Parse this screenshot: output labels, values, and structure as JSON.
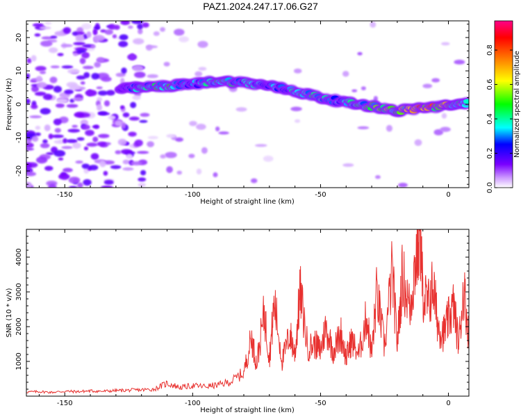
{
  "title": "PAZ1.2024.247.17.06.G27",
  "chart_data": [
    {
      "type": "heatmap",
      "title": "PAZ1.2024.247.17.06.G27",
      "xlabel": "Height of straight line (km)",
      "ylabel": "Frequency (Hz)",
      "xlim": [
        -165,
        8
      ],
      "ylim": [
        -25,
        25
      ],
      "xticks": [
        -150,
        -100,
        -50,
        0
      ],
      "yticks": [
        -20,
        -10,
        0,
        10,
        20
      ],
      "colorbar": {
        "label": "Normalized spectral amplitude",
        "range": [
          0,
          0.97
        ],
        "ticks": [
          0.0,
          0.2,
          0.4,
          0.6,
          0.8
        ],
        "tick_labels": [
          "0.0",
          "0.2",
          "0.4",
          "0.6",
          "0.8"
        ],
        "colors": [
          "#ffffff",
          "#cc99ff",
          "#7a00ff",
          "#0000ff",
          "#00ffff",
          "#00ff00",
          "#ffff00",
          "#ff8800",
          "#ff0000",
          "#ff0088"
        ]
      },
      "signal_ridge": {
        "x": [
          -128,
          -120,
          -110,
          -100,
          -90,
          -80,
          -70,
          -60,
          -50,
          -40,
          -30,
          -20,
          -10,
          0,
          8
        ],
        "frequency": [
          4.5,
          5.0,
          5.5,
          6.0,
          7.0,
          6.5,
          5.5,
          4.0,
          2.0,
          0.5,
          -0.5,
          -2.0,
          -1.0,
          -0.5,
          0.5
        ],
        "peak_amplitude": [
          0.2,
          0.4,
          0.5,
          0.3,
          0.45,
          0.4,
          0.35,
          0.4,
          0.45,
          0.35,
          0.5,
          0.55,
          0.85,
          0.6,
          0.5
        ]
      }
    },
    {
      "type": "line",
      "xlabel": "Height of straight line (km)",
      "ylabel": "SNR (10 * v/v)",
      "xlim": [
        -165,
        8
      ],
      "ylim": [
        0,
        4800
      ],
      "xticks": [
        -150,
        -100,
        -50,
        0
      ],
      "yticks": [
        1000,
        2000,
        3000,
        4000
      ],
      "color": "#e8312f",
      "series": [
        {
          "x": [
            -165,
            -160,
            -155,
            -150,
            -145,
            -140,
            -135,
            -130,
            -125,
            -120,
            -115,
            -110,
            -105,
            -100,
            -95,
            -90,
            -85,
            -80,
            -77,
            -75,
            -72,
            -70,
            -68,
            -65,
            -62,
            -60,
            -58,
            -55,
            -52,
            -50,
            -48,
            -45,
            -42,
            -40,
            -38,
            -35,
            -32,
            -30,
            -28,
            -25,
            -22,
            -20,
            -18,
            -15,
            -13,
            -11,
            -10,
            -8,
            -6,
            -4,
            -2,
            0,
            2,
            4,
            6,
            8
          ],
          "values": [
            120,
            130,
            110,
            140,
            130,
            150,
            140,
            160,
            170,
            180,
            200,
            370,
            250,
            300,
            280,
            320,
            420,
            680,
            1700,
            900,
            2400,
            1100,
            2700,
            1000,
            1800,
            1200,
            3000,
            1400,
            1500,
            1300,
            2000,
            1300,
            1800,
            1100,
            1600,
            1200,
            2300,
            1200,
            3000,
            1400,
            3600,
            1500,
            3500,
            2500,
            3800,
            4700,
            3000,
            2600,
            3200,
            2000,
            1800,
            2200,
            2600,
            1500,
            3100,
            1700
          ]
        }
      ]
    }
  ]
}
